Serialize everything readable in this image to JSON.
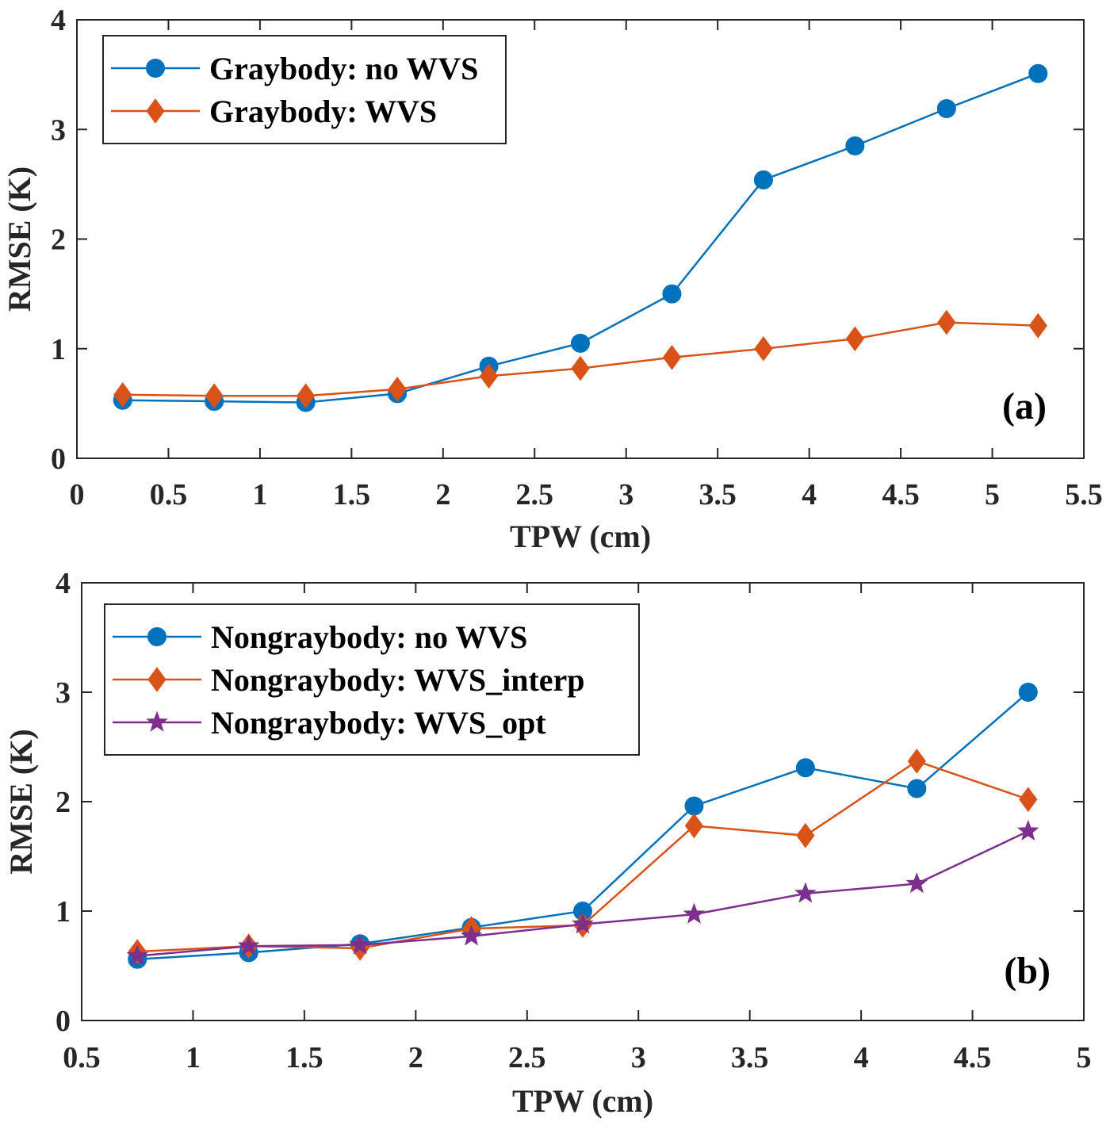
{
  "colors": {
    "blue": "#0072BD",
    "orange": "#D95319",
    "purple": "#7E2F8E",
    "axis": "#262626"
  },
  "chart_data": [
    {
      "type": "line",
      "panel_label": "(a)",
      "xlabel": "TPW (cm)",
      "ylabel": "RMSE (K)",
      "xlim": [
        0,
        5.5
      ],
      "ylim": [
        0,
        4
      ],
      "xticks": [
        "0",
        "0.5",
        "1",
        "1.5",
        "2",
        "2.5",
        "3",
        "3.5",
        "4",
        "4.5",
        "5",
        "5.5"
      ],
      "yticks": [
        "0",
        "1",
        "2",
        "3",
        "4"
      ],
      "legend_position": "top-left",
      "x": [
        0.25,
        0.75,
        1.25,
        1.75,
        2.25,
        2.75,
        3.25,
        3.75,
        4.25,
        4.75,
        5.25
      ],
      "series": [
        {
          "name": "Graybody: no WVS",
          "marker": "circle",
          "color": "#0072BD",
          "values": [
            0.53,
            0.52,
            0.51,
            0.59,
            0.84,
            1.05,
            1.5,
            2.54,
            2.85,
            3.19,
            3.51
          ]
        },
        {
          "name": "Graybody: WVS",
          "marker": "diamond",
          "color": "#D95319",
          "values": [
            0.58,
            0.57,
            0.57,
            0.63,
            0.75,
            0.82,
            0.92,
            1.0,
            1.09,
            1.24,
            1.21
          ]
        }
      ]
    },
    {
      "type": "line",
      "panel_label": "(b)",
      "xlabel": "TPW (cm)",
      "ylabel": "RMSE (K)",
      "xlim": [
        0.5,
        5
      ],
      "ylim": [
        0,
        4
      ],
      "xticks": [
        "0.5",
        "1",
        "1.5",
        "2",
        "2.5",
        "3",
        "3.5",
        "4",
        "4.5",
        "5"
      ],
      "yticks": [
        "0",
        "1",
        "2",
        "3",
        "4"
      ],
      "legend_position": "top-left",
      "x": [
        0.75,
        1.25,
        1.75,
        2.25,
        2.75,
        3.25,
        3.75,
        4.25,
        4.75
      ],
      "series": [
        {
          "name": "Nongraybody: no WVS",
          "marker": "circle",
          "color": "#0072BD",
          "values": [
            0.56,
            0.62,
            0.7,
            0.85,
            1.0,
            1.96,
            2.31,
            2.12,
            3.0
          ]
        },
        {
          "name": "Nongraybody: WVS_interp",
          "marker": "diamond",
          "color": "#D95319",
          "values": [
            0.63,
            0.68,
            0.66,
            0.84,
            0.87,
            1.78,
            1.69,
            2.37,
            2.02
          ]
        },
        {
          "name": "Nongraybody: WVS_opt",
          "marker": "star",
          "color": "#7E2F8E",
          "values": [
            0.59,
            0.68,
            0.69,
            0.77,
            0.88,
            0.97,
            1.16,
            1.25,
            1.73
          ]
        }
      ]
    }
  ]
}
